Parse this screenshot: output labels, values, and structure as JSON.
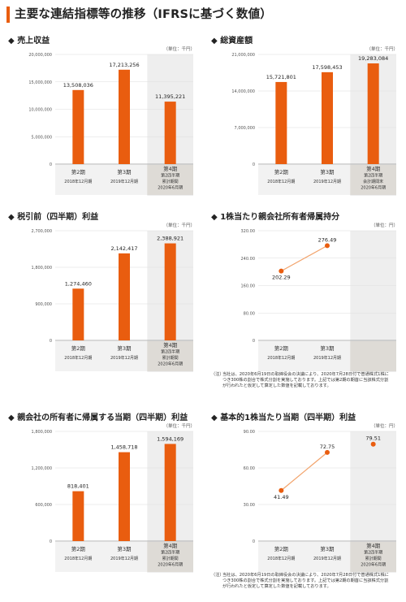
{
  "page": {
    "title": "主要な連結指標等の推移（IFRSに基づく数値）"
  },
  "unit_yen": "（単位：千円）",
  "unit_per_share": "（単位：円）",
  "bullet": "◆",
  "note_label": "（注）",
  "note_text": "当社は、2020年6月19日の取締役会の決議により、2020年7月28日付で普通株式1株につき300株の割合で株式分割を実施しております。上記では第2期の期首に当該株式分割が行われたと仮定して算定した数値を記載しております。",
  "chart_data": [
    {
      "id": "revenue",
      "type": "bar",
      "title": "売上収益",
      "ylim": [
        0,
        20000000
      ],
      "yticks": [
        "0",
        "5,000,000",
        "10,000,000",
        "15,000,000",
        "20,000,000"
      ],
      "categories": [
        [
          "第2期",
          "2018年12月期"
        ],
        [
          "第3期",
          "2019年12月期"
        ],
        [
          "第4期",
          "第2四半期",
          "累計期間",
          "2020年6月期"
        ]
      ],
      "values": [
        13508036,
        17213256,
        11395221
      ],
      "labels": [
        "13,508,036",
        "17,213,256",
        "11,395,221"
      ],
      "color": "#e95d0f"
    },
    {
      "id": "assets",
      "type": "bar",
      "title": "総資産額",
      "ylim": [
        0,
        21000000
      ],
      "yticks": [
        "0",
        "7,000,000",
        "14,000,000",
        "21,000,000"
      ],
      "categories": [
        [
          "第2期",
          "2018年12月期"
        ],
        [
          "第3期",
          "2019年12月期"
        ],
        [
          "第4期",
          "第2四半期",
          "会計期間末",
          "2020年6月期"
        ]
      ],
      "values": [
        15721801,
        17598453,
        19283084
      ],
      "labels": [
        "15,721,801",
        "17,598,453",
        "19,283,084"
      ],
      "color": "#e95d0f"
    },
    {
      "id": "pretax",
      "type": "bar",
      "title": "税引前（四半期）利益",
      "ylim": [
        0,
        2700000
      ],
      "yticks": [
        "0",
        "900,000",
        "1,800,000",
        "2,700,000"
      ],
      "categories": [
        [
          "第2期",
          "2018年12月期"
        ],
        [
          "第3期",
          "2019年12月期"
        ],
        [
          "第4期",
          "第2四半期",
          "累計期間",
          "2020年6月期"
        ]
      ],
      "values": [
        1274460,
        2142417,
        2388921
      ],
      "labels": [
        "1,274,460",
        "2,142,417",
        "2,388,921"
      ],
      "color": "#e95d0f"
    },
    {
      "id": "bps",
      "type": "line",
      "title": "1株当たり親会社所有者帰属持分",
      "ylim": [
        0,
        320
      ],
      "yticks": [
        "0",
        "80.00",
        "160.00",
        "240.00",
        "320.00"
      ],
      "categories": [
        [
          "第2期",
          "2018年12月期"
        ],
        [
          "第3期",
          "2019年12月期"
        ]
      ],
      "values": [
        202.29,
        276.49
      ],
      "labels": [
        "202.29",
        "276.49"
      ],
      "color": "#e95d0f"
    },
    {
      "id": "net_income",
      "type": "bar",
      "title": "親会社の所有者に帰属する当期（四半期）利益",
      "ylim": [
        0,
        1800000
      ],
      "yticks": [
        "0",
        "600,000",
        "1,200,000",
        "1,800,000"
      ],
      "categories": [
        [
          "第2期",
          "2018年12月期"
        ],
        [
          "第3期",
          "2019年12月期"
        ],
        [
          "第4期",
          "第2四半期",
          "累計期間",
          "2020年6月期"
        ]
      ],
      "values": [
        818401,
        1458718,
        1594169
      ],
      "labels": [
        "818,401",
        "1,458,718",
        "1,594,169"
      ],
      "color": "#e95d0f"
    },
    {
      "id": "eps",
      "type": "line",
      "title": "基本的1株当たり当期（四半期）利益",
      "ylim": [
        0,
        90
      ],
      "yticks": [
        "0",
        "30.00",
        "60.00",
        "90.00"
      ],
      "categories": [
        [
          "第2期",
          "2018年12月期"
        ],
        [
          "第3期",
          "2019年12月期"
        ],
        [
          "第4期",
          "第2四半期",
          "累計期間",
          "2020年6月期"
        ]
      ],
      "values": [
        41.49,
        72.75,
        79.51
      ],
      "labels": [
        "41.49",
        "72.75",
        "79.51"
      ],
      "color": "#e95d0f",
      "connected_points": 2
    }
  ]
}
